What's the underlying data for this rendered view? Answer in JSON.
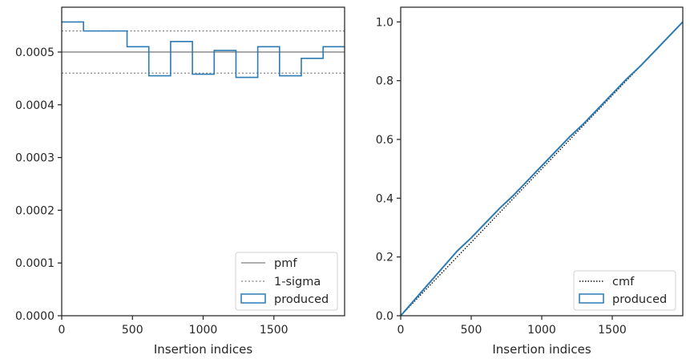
{
  "colors": {
    "produced": "#2b7bb4",
    "pmf": "#808080",
    "sigma": "#808080",
    "cmf": "#111111",
    "axis": "#262626"
  },
  "chart_data": [
    {
      "type": "step",
      "xlabel": "Insertion indices",
      "ylabel": "",
      "xlim": [
        0,
        2000
      ],
      "ylim": [
        0,
        0.000585
      ],
      "x_ticks": [
        0,
        500,
        1000,
        1500
      ],
      "x_tick_labels": [
        "0",
        "500",
        "1000",
        "1500"
      ],
      "y_ticks": [
        0,
        0.0001,
        0.0002,
        0.0003,
        0.0004,
        0.0005
      ],
      "y_tick_labels": [
        "0.0000",
        "0.0001",
        "0.0002",
        "0.0003",
        "0.0004",
        "0.0005"
      ],
      "legend_position": "lower-right",
      "legend": [
        "pmf",
        "1-sigma",
        "produced"
      ],
      "pmf": 0.0005,
      "sigma_band": [
        0.00046,
        0.00054
      ],
      "bin_edges": [
        0,
        154,
        462,
        616,
        770,
        924,
        1078,
        1232,
        1386,
        1540,
        1694,
        1848,
        2000
      ],
      "produced": [
        0.000557,
        0.00054,
        0.00051,
        0.000455,
        0.00052,
        0.000458,
        0.000503,
        0.000452,
        0.00051,
        0.000455,
        0.000488,
        0.00051
      ]
    },
    {
      "type": "line",
      "xlabel": "Insertion indices",
      "ylabel": "",
      "xlim": [
        0,
        2000
      ],
      "ylim": [
        0,
        1.05
      ],
      "x_ticks": [
        0,
        500,
        1000,
        1500
      ],
      "x_tick_labels": [
        "0",
        "500",
        "1000",
        "1500"
      ],
      "y_ticks": [
        0,
        0.2,
        0.4,
        0.6,
        0.8,
        1.0
      ],
      "y_tick_labels": [
        "0.0",
        "0.2",
        "0.4",
        "0.6",
        "0.8",
        "1.0"
      ],
      "legend_position": "lower-right",
      "legend": [
        "cmf",
        "produced"
      ],
      "cmf": {
        "x": [
          0,
          2000
        ],
        "y": [
          0,
          1.0
        ]
      },
      "produced": {
        "x": [
          0,
          100,
          200,
          300,
          400,
          500,
          600,
          700,
          800,
          900,
          1000,
          1100,
          1200,
          1300,
          1400,
          1500,
          1600,
          1700,
          1800,
          1900,
          2000
        ],
        "y": [
          0,
          0.055,
          0.11,
          0.165,
          0.22,
          0.265,
          0.315,
          0.365,
          0.41,
          0.46,
          0.51,
          0.56,
          0.61,
          0.655,
          0.705,
          0.755,
          0.805,
          0.85,
          0.9,
          0.95,
          1.0
        ]
      }
    }
  ]
}
